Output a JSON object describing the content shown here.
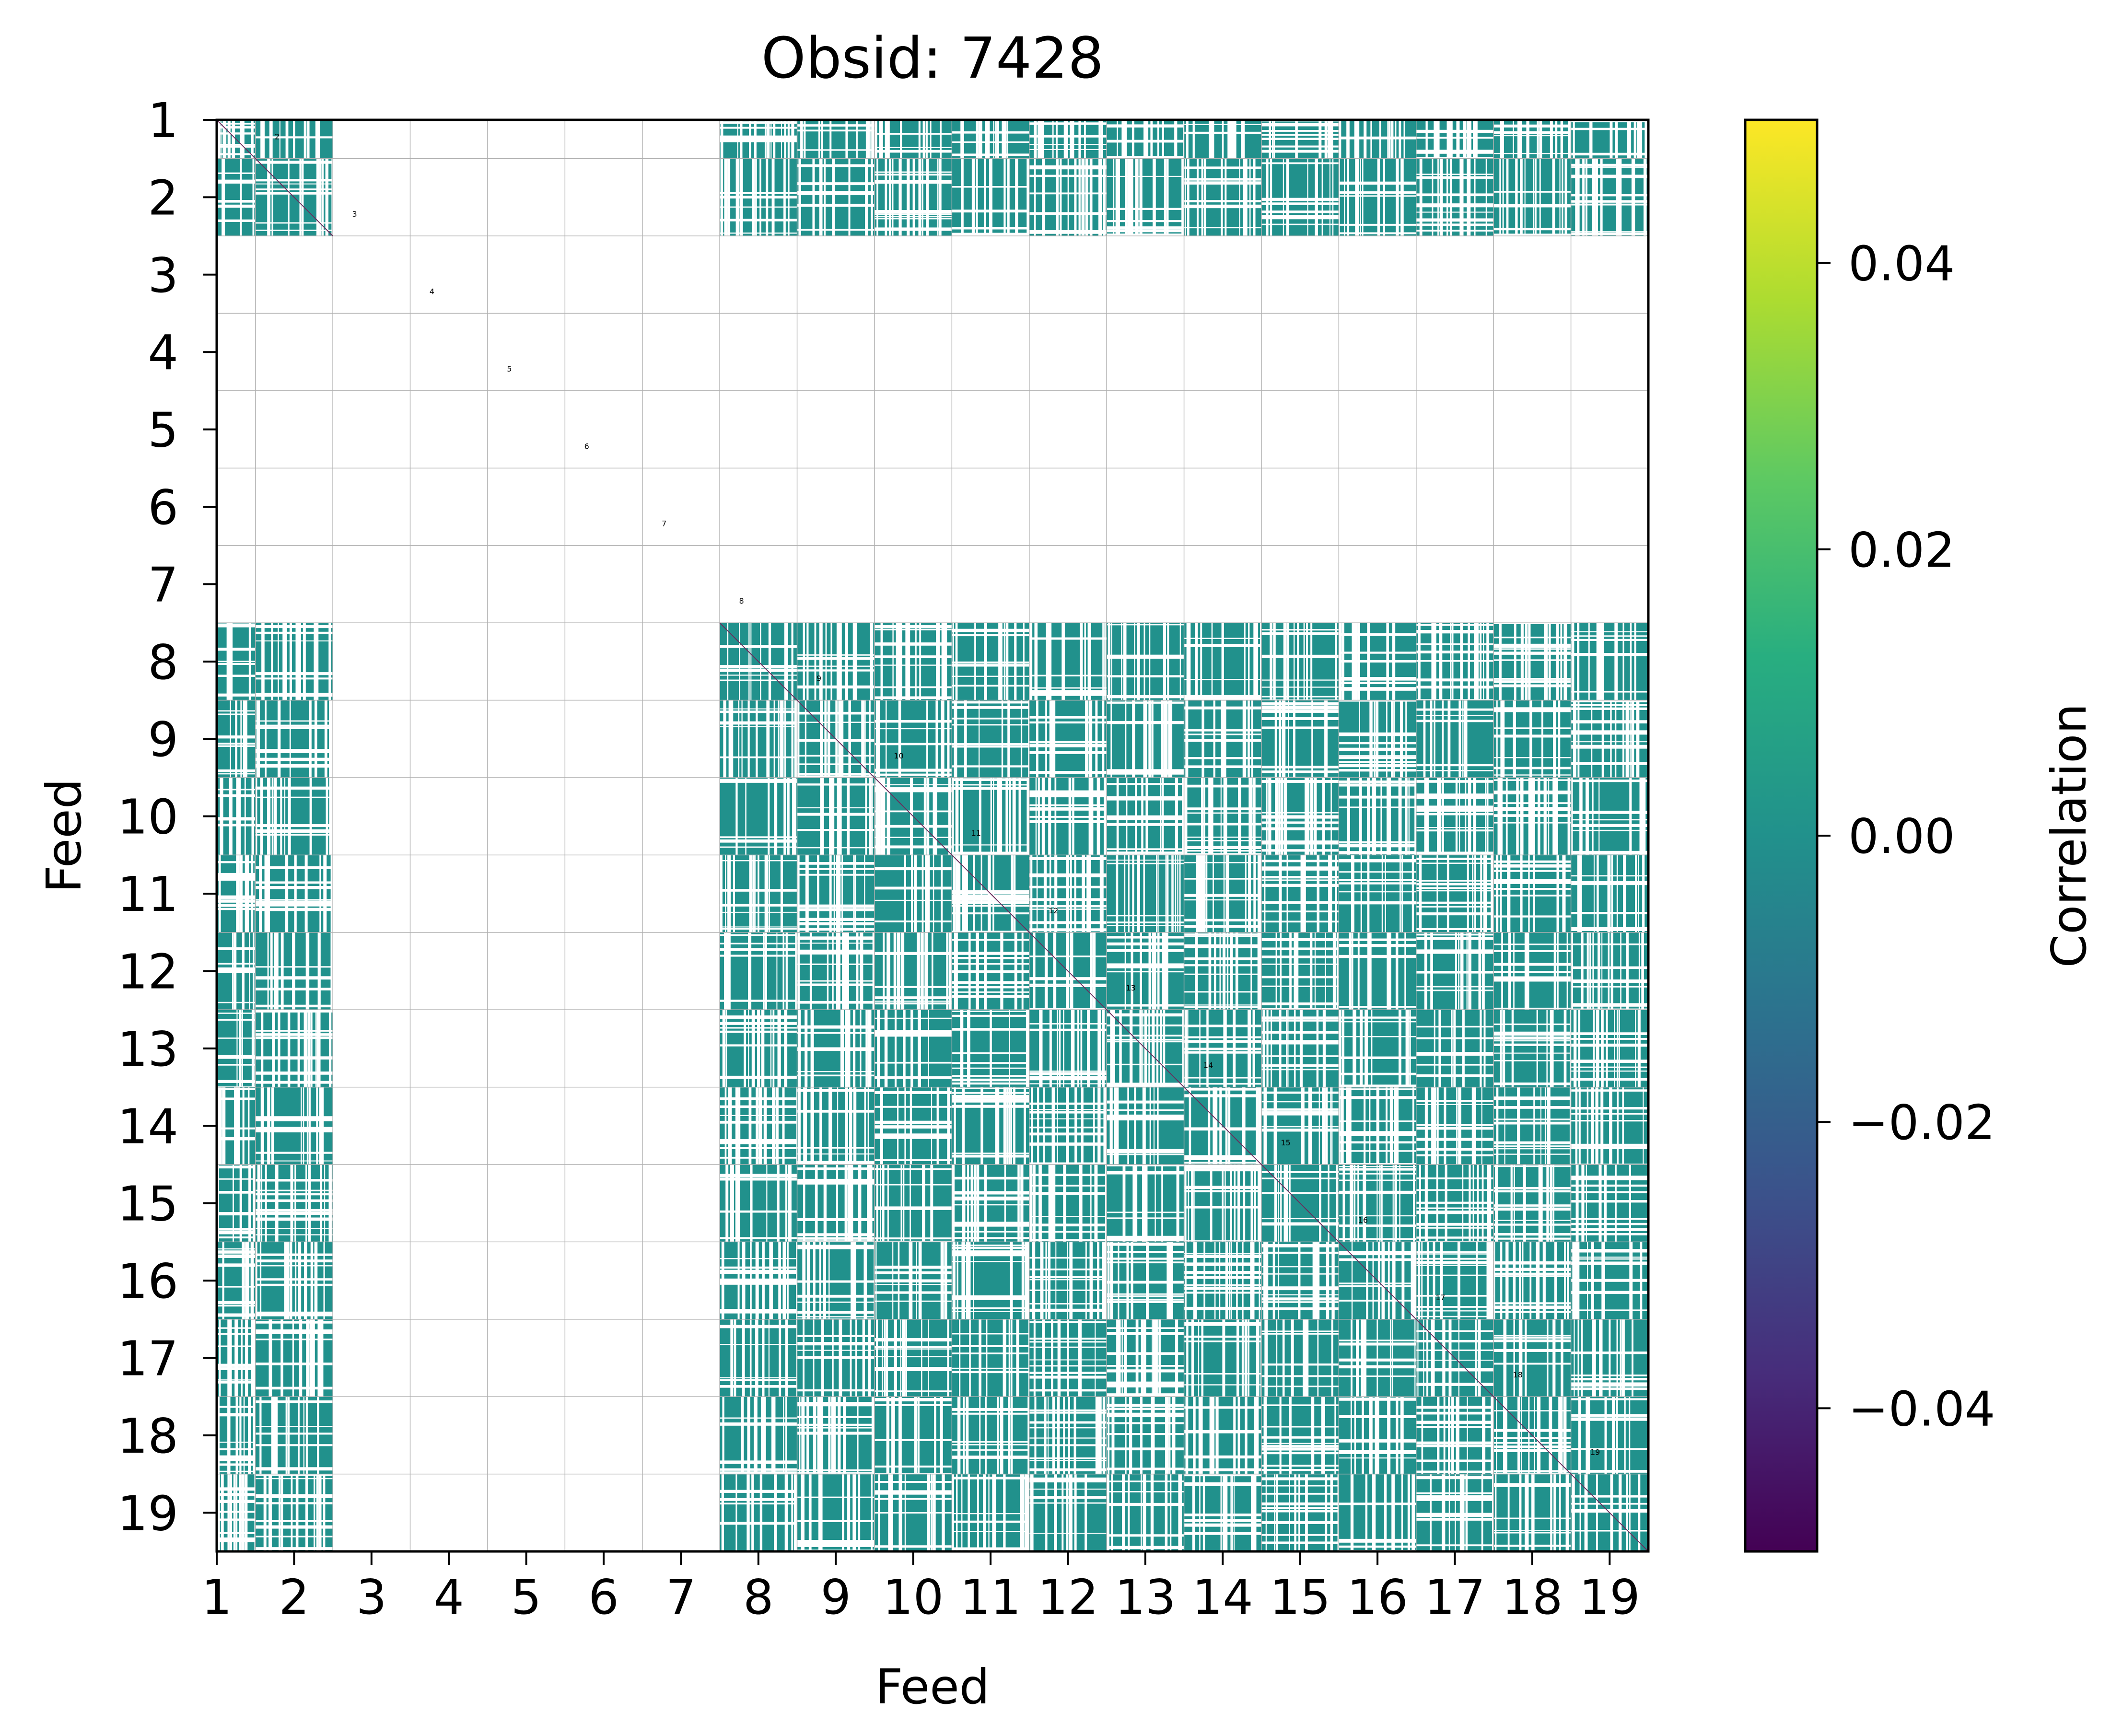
{
  "chart_data": [
    {
      "type": "heatmap",
      "title": "Obsid: 7428",
      "xlabel": "Feed",
      "ylabel": "Feed",
      "categories": [
        "1",
        "2",
        "3",
        "4",
        "5",
        "6",
        "7",
        "8",
        "9",
        "10",
        "11",
        "12",
        "13",
        "14",
        "15",
        "16",
        "17",
        "18",
        "19"
      ],
      "diagonal_labels": [
        "1",
        "2",
        "3",
        "4",
        "5",
        "6",
        "7",
        "8",
        "9",
        "10",
        "11",
        "12",
        "13",
        "14",
        "15",
        "16",
        "17",
        "18",
        "19"
      ],
      "grid": true,
      "colormap": "viridis",
      "color_range": [
        -0.05,
        0.05
      ],
      "cell_color": "#21918c",
      "inactive_feeds": [
        "3",
        "4",
        "5",
        "6",
        "7"
      ],
      "colorbar": {
        "label": "Correlation",
        "ticks": [
          "0.04",
          "0.02",
          "0.00",
          "−0.02",
          "−0.04"
        ],
        "tick_values": [
          0.04,
          0.02,
          0.0,
          -0.02,
          -0.04
        ],
        "range": [
          -0.05,
          0.05
        ]
      }
    }
  ]
}
